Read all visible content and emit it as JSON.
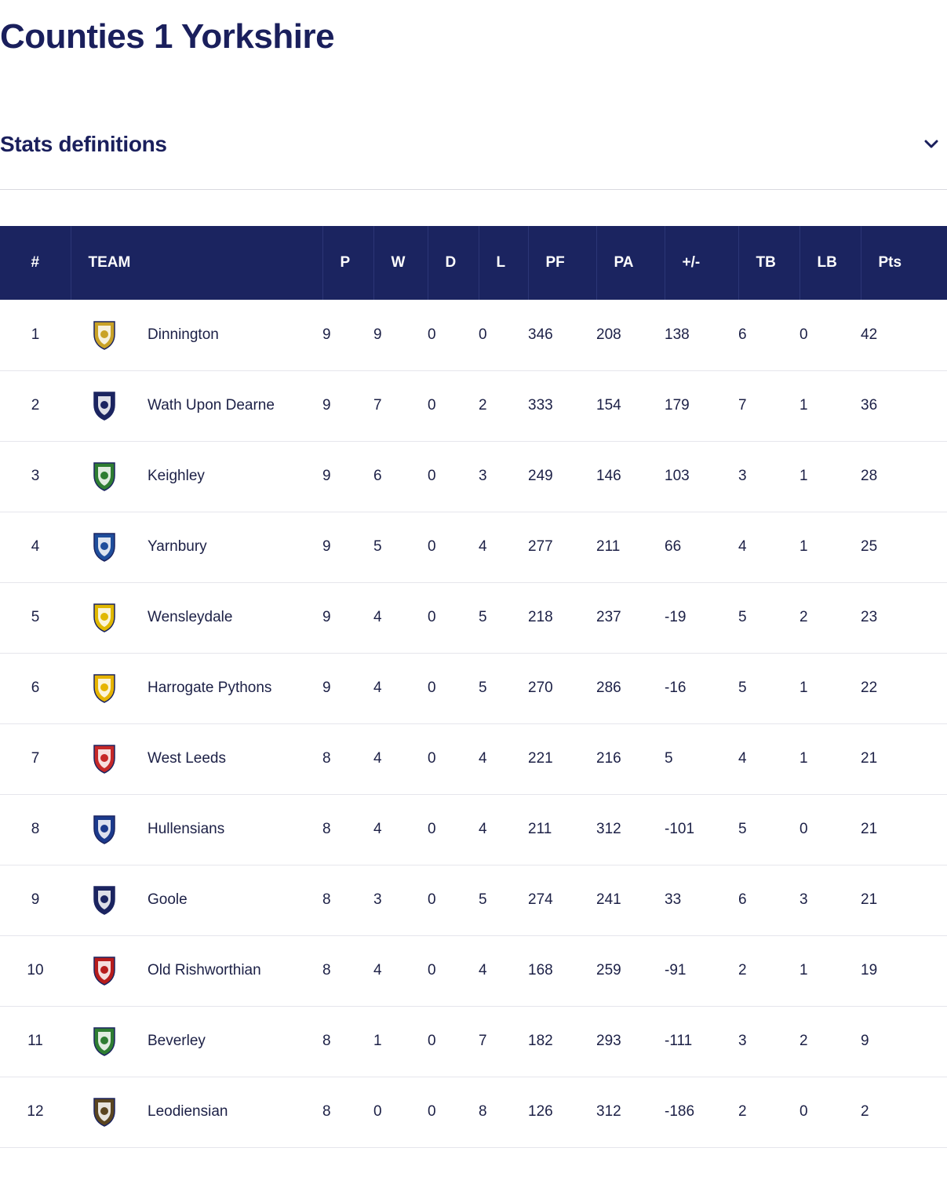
{
  "page": {
    "title": "Counties 1 Yorkshire"
  },
  "stats": {
    "label": "Stats definitions",
    "toggle_icon": "chevron-down-icon"
  },
  "colors": {
    "header_bg": "#1b2460",
    "title": "#1a1f5c",
    "row_border": "#e6e6ec"
  },
  "table": {
    "headers": [
      "#",
      "TEAM",
      "P",
      "W",
      "D",
      "L",
      "PF",
      "PA",
      "+/-",
      "TB",
      "LB",
      "Pts"
    ],
    "rows": [
      {
        "rank": "1",
        "team": "Dinnington",
        "crest": "dinnington-crest-icon",
        "crest_color": "#c9a227",
        "P": "9",
        "W": "9",
        "D": "0",
        "L": "0",
        "PF": "346",
        "PA": "208",
        "diff": "138",
        "TB": "6",
        "LB": "0",
        "Pts": "42"
      },
      {
        "rank": "2",
        "team": "Wath Upon Dearne",
        "crest": "wath-upon-dearne-crest-icon",
        "crest_color": "#1b2460",
        "P": "9",
        "W": "7",
        "D": "0",
        "L": "2",
        "PF": "333",
        "PA": "154",
        "diff": "179",
        "TB": "7",
        "LB": "1",
        "Pts": "36"
      },
      {
        "rank": "3",
        "team": "Keighley",
        "crest": "keighley-crest-icon",
        "crest_color": "#2e7d32",
        "P": "9",
        "W": "6",
        "D": "0",
        "L": "3",
        "PF": "249",
        "PA": "146",
        "diff": "103",
        "TB": "3",
        "LB": "1",
        "Pts": "28"
      },
      {
        "rank": "4",
        "team": "Yarnbury",
        "crest": "yarnbury-crest-icon",
        "crest_color": "#1f4e9c",
        "P": "9",
        "W": "5",
        "D": "0",
        "L": "4",
        "PF": "277",
        "PA": "211",
        "diff": "66",
        "TB": "4",
        "LB": "1",
        "Pts": "25"
      },
      {
        "rank": "5",
        "team": "Wensleydale",
        "crest": "wensleydale-crest-icon",
        "crest_color": "#e0b800",
        "P": "9",
        "W": "4",
        "D": "0",
        "L": "5",
        "PF": "218",
        "PA": "237",
        "diff": "-19",
        "TB": "5",
        "LB": "2",
        "Pts": "23"
      },
      {
        "rank": "6",
        "team": "Harrogate Pythons",
        "crest": "harrogate-pythons-crest-icon",
        "crest_color": "#e6b400",
        "P": "9",
        "W": "4",
        "D": "0",
        "L": "5",
        "PF": "270",
        "PA": "286",
        "diff": "-16",
        "TB": "5",
        "LB": "1",
        "Pts": "22"
      },
      {
        "rank": "7",
        "team": "West Leeds",
        "crest": "west-leeds-crest-icon",
        "crest_color": "#c62828",
        "P": "8",
        "W": "4",
        "D": "0",
        "L": "4",
        "PF": "221",
        "PA": "216",
        "diff": "5",
        "TB": "4",
        "LB": "1",
        "Pts": "21"
      },
      {
        "rank": "8",
        "team": "Hullensians",
        "crest": "hullensians-crest-icon",
        "crest_color": "#1b3a8c",
        "P": "8",
        "W": "4",
        "D": "0",
        "L": "4",
        "PF": "211",
        "PA": "312",
        "diff": "-101",
        "TB": "5",
        "LB": "0",
        "Pts": "21"
      },
      {
        "rank": "9",
        "team": "Goole",
        "crest": "goole-crest-icon",
        "crest_color": "#1b2460",
        "P": "8",
        "W": "3",
        "D": "0",
        "L": "5",
        "PF": "274",
        "PA": "241",
        "diff": "33",
        "TB": "6",
        "LB": "3",
        "Pts": "21"
      },
      {
        "rank": "10",
        "team": "Old Rishworthian",
        "crest": "old-rishworthian-crest-icon",
        "crest_color": "#b71c1c",
        "P": "8",
        "W": "4",
        "D": "0",
        "L": "4",
        "PF": "168",
        "PA": "259",
        "diff": "-91",
        "TB": "2",
        "LB": "1",
        "Pts": "19"
      },
      {
        "rank": "11",
        "team": "Beverley",
        "crest": "beverley-crest-icon",
        "crest_color": "#2e7d32",
        "P": "8",
        "W": "1",
        "D": "0",
        "L": "7",
        "PF": "182",
        "PA": "293",
        "diff": "-111",
        "TB": "3",
        "LB": "2",
        "Pts": "9"
      },
      {
        "rank": "12",
        "team": "Leodiensian",
        "crest": "leodiensian-crest-icon",
        "crest_color": "#5a4520",
        "P": "8",
        "W": "0",
        "D": "0",
        "L": "8",
        "PF": "126",
        "PA": "312",
        "diff": "-186",
        "TB": "2",
        "LB": "0",
        "Pts": "2"
      }
    ]
  }
}
